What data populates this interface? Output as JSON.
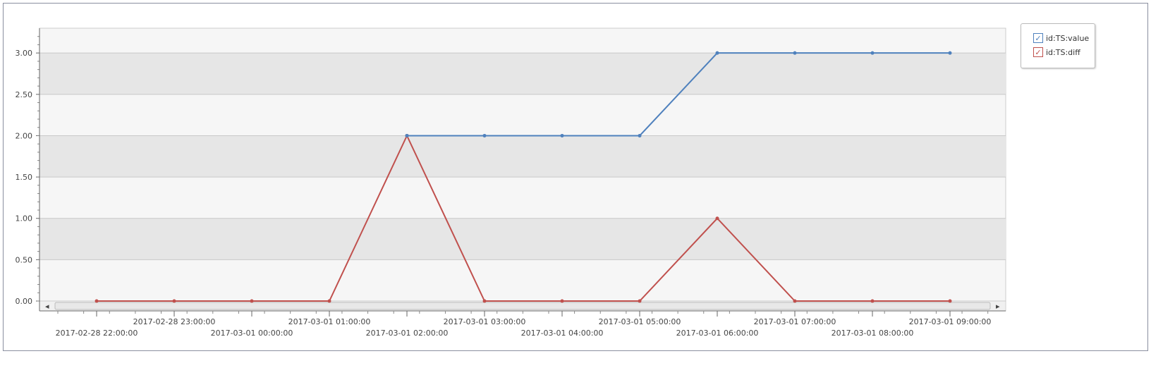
{
  "chart_data": {
    "type": "line",
    "x": [
      "2017-02-28 22:00:00",
      "2017-02-28 23:00:00",
      "2017-03-01 00:00:00",
      "2017-03-01 01:00:00",
      "2017-03-01 02:00:00",
      "2017-03-01 03:00:00",
      "2017-03-01 04:00:00",
      "2017-03-01 05:00:00",
      "2017-03-01 06:00:00",
      "2017-03-01 07:00:00",
      "2017-03-01 08:00:00",
      "2017-03-01 09:00:00"
    ],
    "series": [
      {
        "name": "id:TS:value",
        "color": "#4f81bd",
        "values": [
          null,
          null,
          null,
          null,
          2,
          2,
          2,
          2,
          3,
          3,
          3,
          3
        ]
      },
      {
        "name": "id:TS:diff",
        "color": "#c0504d",
        "values": [
          0,
          0,
          0,
          0,
          2,
          0,
          0,
          0,
          1,
          0,
          0,
          0
        ]
      }
    ],
    "yticks": [
      "0.00",
      "0.50",
      "1.00",
      "1.50",
      "2.00",
      "2.50",
      "3.00"
    ],
    "ylim": [
      0,
      3.3
    ],
    "grid": true,
    "legend_position": "top-right",
    "band_colors": [
      "#f6f6f6",
      "#e6e6e6"
    ]
  }
}
